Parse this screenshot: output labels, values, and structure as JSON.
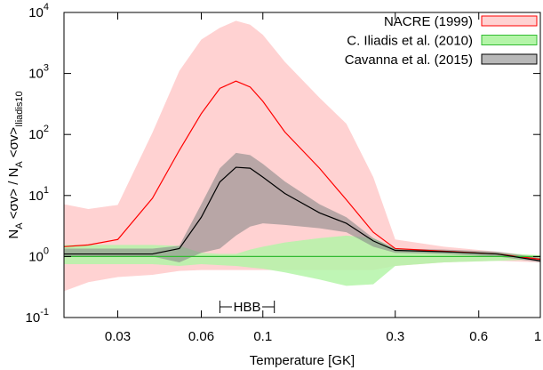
{
  "chart_data": {
    "type": "band-line",
    "xscale": "log",
    "yscale": "log",
    "xlabel": "Temperature [GK]",
    "ylabel": [
      "N",
      "A",
      " <σv> / N",
      "A",
      " <σv>",
      "Iliadis10"
    ],
    "xlim": [
      0.0192,
      1
    ],
    "ylim": [
      0.1,
      10000
    ],
    "xticks": [
      0.03,
      0.06,
      0.1,
      0.3,
      0.6,
      1
    ],
    "yticks": [
      {
        "value": 0.1,
        "label": "10",
        "exponent": "-1"
      },
      {
        "value": 1,
        "label": "10",
        "exponent": "0"
      },
      {
        "value": 10,
        "label": "10",
        "exponent": "1"
      },
      {
        "value": 100,
        "label": "10",
        "exponent": "2"
      },
      {
        "value": 1000,
        "label": "10",
        "exponent": "3"
      },
      {
        "value": 10000,
        "label": "10",
        "exponent": "4"
      }
    ],
    "legend": "top-right",
    "x": [
      0.0192,
      0.0235,
      0.03,
      0.04,
      0.05,
      0.06,
      0.07,
      0.08,
      0.09,
      0.1,
      0.12,
      0.16,
      0.2,
      0.25,
      0.3,
      0.45,
      0.7,
      1
    ],
    "series": [
      {
        "name": "NACRE (1999)",
        "color": "#ff0000",
        "band_color": "#ffd2d2",
        "values": [
          1.45,
          1.55,
          1.9,
          9,
          55,
          220,
          570,
          750,
          600,
          350,
          110,
          28,
          8.5,
          2.5,
          1.35,
          1.22,
          1.1,
          0.9
        ],
        "high": [
          7.2,
          6,
          7,
          107,
          1100,
          3600,
          5600,
          7300,
          6300,
          4300,
          1550,
          400,
          150,
          20,
          1.9,
          1.45,
          1.2,
          1.0
        ],
        "low": [
          0.27,
          0.38,
          0.46,
          0.5,
          0.58,
          0.6,
          0.6,
          0.6,
          0.6,
          0.6,
          0.6,
          0.6,
          0.6,
          0.6,
          0.7,
          0.8,
          0.85,
          0.8
        ]
      },
      {
        "name": "C. Iliadis et al. (2010)",
        "color": "#33bb33",
        "band_color": "#b4f5a8",
        "values": [
          1,
          1,
          1,
          1,
          1,
          1,
          1,
          1,
          1,
          1,
          1,
          1,
          1,
          1,
          1,
          1,
          1,
          1
        ],
        "high": [
          1.55,
          1.55,
          1.55,
          1.55,
          1.5,
          1.15,
          1.1,
          1.1,
          1.3,
          1.45,
          1.7,
          2.0,
          2.2,
          2.0,
          1.35,
          1.25,
          1.15,
          1.05
        ],
        "low": [
          0.75,
          0.75,
          0.75,
          0.75,
          0.7,
          0.75,
          0.72,
          0.7,
          0.66,
          0.63,
          0.55,
          0.42,
          0.33,
          0.35,
          0.7,
          0.8,
          0.85,
          0.9
        ]
      },
      {
        "name": "Cavanna et al. (2015)",
        "color": "#000000",
        "band_color": "#888888",
        "values": [
          1.1,
          1.1,
          1.1,
          1.1,
          1.35,
          4.4,
          16.7,
          29,
          28,
          20,
          10.8,
          5.2,
          3.5,
          1.8,
          1.26,
          1.2,
          1.1,
          0.85
        ],
        "high": [
          1.35,
          1.35,
          1.35,
          1.35,
          1.5,
          7.2,
          28,
          50,
          46,
          33,
          17,
          7.2,
          4.4,
          2.0,
          1.35,
          1.3,
          1.2,
          0.95
        ],
        "low": [
          1.0,
          1.0,
          1.0,
          1.0,
          0.8,
          1.15,
          1.35,
          2.2,
          3.1,
          3.5,
          3.3,
          2.9,
          2.5,
          1.45,
          1.15,
          1.1,
          1.0,
          0.8
        ]
      }
    ],
    "annotation": {
      "text": "HBB",
      "x": [
        0.07,
        0.11
      ]
    }
  }
}
